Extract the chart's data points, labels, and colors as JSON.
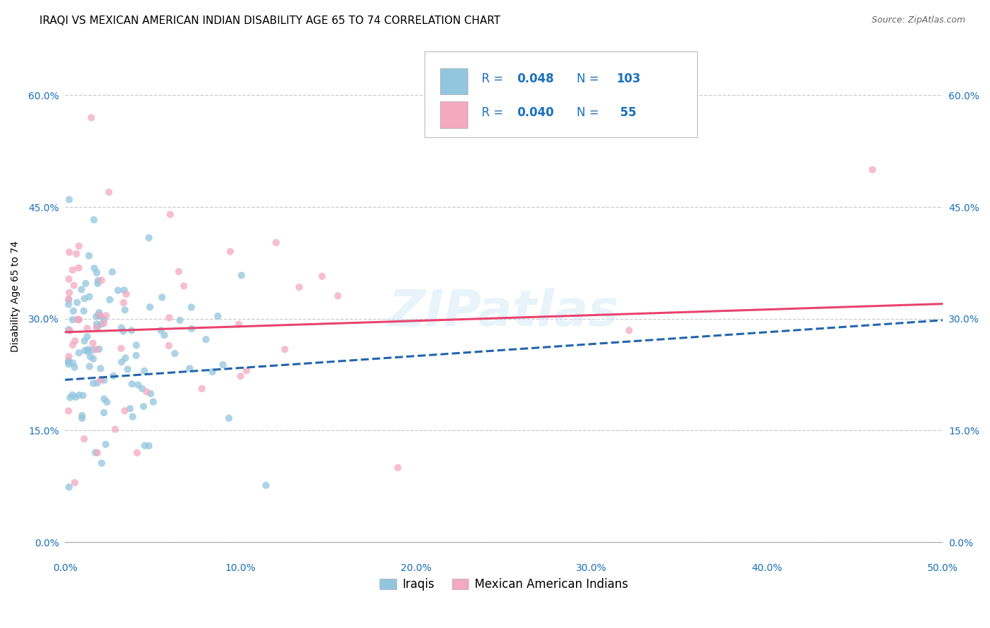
{
  "title": "IRAQI VS MEXICAN AMERICAN INDIAN DISABILITY AGE 65 TO 74 CORRELATION CHART",
  "source": "Source: ZipAtlas.com",
  "ylabel": "Disability Age 65 to 74",
  "xlim": [
    0.0,
    0.5
  ],
  "ylim": [
    -0.02,
    0.68
  ],
  "yticks": [
    0.0,
    0.15,
    0.3,
    0.45,
    0.6
  ],
  "xticks": [
    0.0,
    0.1,
    0.2,
    0.3,
    0.4,
    0.5
  ],
  "legend_labels": [
    "Iraqis",
    "Mexican American Indians"
  ],
  "iraqis_R": "0.048",
  "iraqis_N": "103",
  "mexican_R": "0.040",
  "mexican_N": "55",
  "iraqi_color": "#92c5de",
  "mexican_color": "#f4a9c0",
  "iraqi_line_color": "#2166ac",
  "mexican_line_color": "#e8436e",
  "legend_text_color": "#1a6fba",
  "watermark": "ZIPatlas",
  "title_fontsize": 11,
  "label_fontsize": 10,
  "tick_fontsize": 10,
  "legend_fontsize": 12,
  "iraqi_line_start_y": 0.218,
  "iraqi_line_end_y": 0.298,
  "mexican_line_start_y": 0.282,
  "mexican_line_end_y": 0.32,
  "grid_color": "#cccccc",
  "grid_style": "--"
}
